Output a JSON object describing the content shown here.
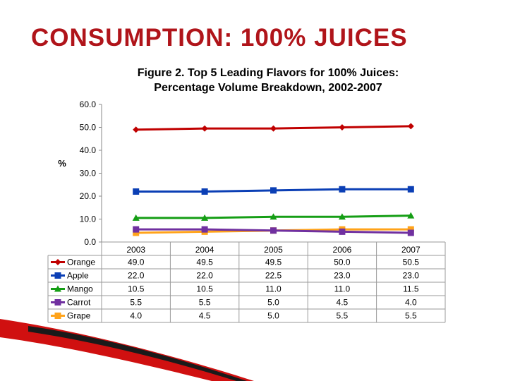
{
  "slide": {
    "title": "CONSUMPTION: 100% JUICES"
  },
  "chart_data": {
    "type": "line",
    "title_line1": "Figure 2. Top 5 Leading Flavors for 100% Juices:",
    "title_line2": "Percentage Volume Breakdown, 2002-2007",
    "xlabel": "",
    "ylabel": "%",
    "ylim": [
      0,
      60
    ],
    "yticks": [
      "0.0",
      "10.0",
      "20.0",
      "30.0",
      "40.0",
      "50.0",
      "60.0"
    ],
    "categories": [
      "2003",
      "2004",
      "2005",
      "2006",
      "2007"
    ],
    "grid": false,
    "legend": "data-table",
    "series": [
      {
        "name": "Orange",
        "color": "#c00000",
        "marker": "diamond",
        "values": [
          49.0,
          49.5,
          49.5,
          50.0,
          50.5
        ],
        "labels": [
          "49.0",
          "49.5",
          "49.5",
          "50.0",
          "50.5"
        ]
      },
      {
        "name": "Apple",
        "color": "#0b3fb5",
        "marker": "square",
        "values": [
          22.0,
          22.0,
          22.5,
          23.0,
          23.0
        ],
        "labels": [
          "22.0",
          "22.0",
          "22.5",
          "23.0",
          "23.0"
        ]
      },
      {
        "name": "Mango",
        "color": "#159e15",
        "marker": "triangle",
        "values": [
          10.5,
          10.5,
          11.0,
          11.0,
          11.5
        ],
        "labels": [
          "10.5",
          "10.5",
          "11.0",
          "11.0",
          "11.5"
        ]
      },
      {
        "name": "Carrot",
        "color": "#7030a0",
        "marker": "square",
        "values": [
          5.5,
          5.5,
          5.0,
          4.5,
          4.0
        ],
        "labels": [
          "5.5",
          "5.5",
          "5.0",
          "4.5",
          "4.0"
        ]
      },
      {
        "name": "Grape",
        "color": "#ffa31a",
        "marker": "square",
        "values": [
          4.0,
          4.5,
          5.0,
          5.5,
          5.5
        ],
        "labels": [
          "4.0",
          "4.5",
          "5.0",
          "5.5",
          "5.5"
        ]
      }
    ]
  },
  "decoration": {
    "swoosh_red": "#d01010",
    "swoosh_dark": "#1a1a1a"
  }
}
